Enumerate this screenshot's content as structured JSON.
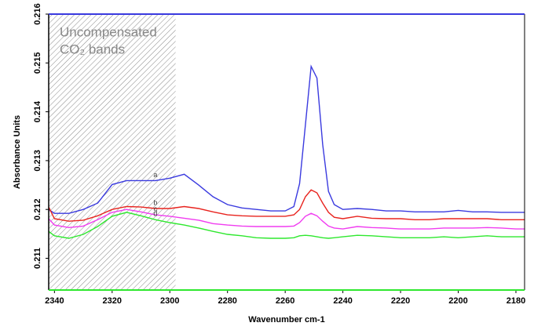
{
  "chart_data": {
    "type": "line",
    "x_label": "Wavenumber cm-1",
    "y_label": "Absorbance Units",
    "annotation": [
      "Uncompensated",
      "CO₂ bands"
    ],
    "shaded_region": [
      2342,
      2298
    ],
    "x": [
      2342,
      2340,
      2335,
      2330,
      2325,
      2320,
      2315,
      2310,
      2305,
      2300,
      2295,
      2290,
      2285,
      2280,
      2275,
      2270,
      2265,
      2260,
      2257,
      2255,
      2253,
      2251,
      2249,
      2247,
      2245,
      2243,
      2240,
      2235,
      2230,
      2225,
      2220,
      2215,
      2210,
      2205,
      2200,
      2195,
      2190,
      2185,
      2180,
      2177
    ],
    "series": [
      {
        "name": "a",
        "color": "#3a3adf",
        "values": [
          0.212,
          0.21192,
          0.21192,
          0.212,
          0.21213,
          0.21251,
          0.21259,
          0.21259,
          0.21259,
          0.21264,
          0.21272,
          0.2125,
          0.21226,
          0.2121,
          0.21203,
          0.212,
          0.21197,
          0.21197,
          0.21206,
          0.21253,
          0.21373,
          0.21493,
          0.21469,
          0.21333,
          0.21237,
          0.2121,
          0.212,
          0.21202,
          0.212,
          0.21197,
          0.21197,
          0.21195,
          0.21195,
          0.21195,
          0.21198,
          0.21195,
          0.21195,
          0.21194,
          0.21194,
          0.21194
        ]
      },
      {
        "name": "b",
        "color": "#e8231e",
        "values": [
          0.21205,
          0.21181,
          0.21176,
          0.21178,
          0.21187,
          0.212,
          0.21206,
          0.21205,
          0.21202,
          0.21202,
          0.21206,
          0.21202,
          0.21195,
          0.21189,
          0.21187,
          0.21186,
          0.21186,
          0.21186,
          0.21189,
          0.212,
          0.21226,
          0.2124,
          0.21234,
          0.21213,
          0.21194,
          0.21184,
          0.21181,
          0.21186,
          0.21182,
          0.21181,
          0.21181,
          0.21179,
          0.21179,
          0.21181,
          0.21181,
          0.21181,
          0.21181,
          0.21179,
          0.21179,
          0.21179
        ]
      },
      {
        "name": "c",
        "color": "#f03cf0",
        "values": [
          0.21181,
          0.21168,
          0.21163,
          0.21166,
          0.21179,
          0.21194,
          0.212,
          0.21195,
          0.21189,
          0.21186,
          0.21182,
          0.21178,
          0.21171,
          0.21168,
          0.21166,
          0.21165,
          0.21165,
          0.21165,
          0.21166,
          0.21173,
          0.21186,
          0.21192,
          0.21187,
          0.21176,
          0.21166,
          0.21162,
          0.2116,
          0.21165,
          0.21163,
          0.21162,
          0.2116,
          0.2116,
          0.2116,
          0.21162,
          0.21162,
          0.21162,
          0.21163,
          0.21162,
          0.2116,
          0.2116
        ]
      },
      {
        "name": "d",
        "color": "#2ee82e",
        "values": [
          0.21155,
          0.21146,
          0.21141,
          0.21149,
          0.21165,
          0.21186,
          0.21194,
          0.21187,
          0.21179,
          0.21173,
          0.21168,
          0.21162,
          0.21155,
          0.21149,
          0.21146,
          0.21142,
          0.21141,
          0.21141,
          0.21142,
          0.21146,
          0.21147,
          0.21146,
          0.21144,
          0.21142,
          0.21141,
          0.21142,
          0.21144,
          0.21147,
          0.21146,
          0.21144,
          0.21142,
          0.21142,
          0.21142,
          0.21144,
          0.21142,
          0.21144,
          0.21146,
          0.21144,
          0.21144,
          0.21144
        ]
      }
    ],
    "xlim": [
      2342,
      2177
    ],
    "xticks": [
      2340,
      2320,
      2300,
      2280,
      2260,
      2240,
      2220,
      2200,
      2180
    ],
    "ylim": [
      0.21035,
      0.216
    ],
    "yticks": [
      0.211,
      0.212,
      0.213,
      0.214,
      0.215,
      0.216
    ]
  }
}
